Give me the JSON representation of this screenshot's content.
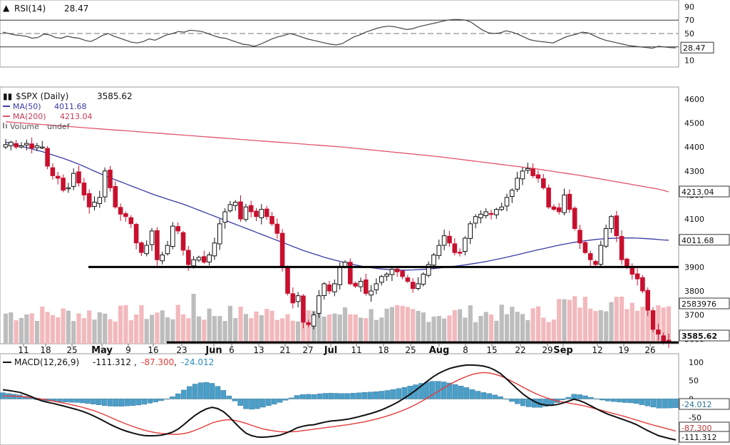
{
  "chart_data": [
    {
      "type": "line",
      "name": "rsi-panel",
      "legend": {
        "label": "RSI(14)",
        "value": "28.47"
      },
      "y_ticks": [
        "90",
        "70",
        "50",
        "30",
        "10"
      ],
      "ylim": [
        0,
        100
      ],
      "reference_lines": [
        70,
        50,
        30
      ],
      "last_value_label": "28.47",
      "series": [
        {
          "name": "RSI(14)",
          "color": "#444444",
          "values": [
            52,
            50,
            48,
            47,
            46,
            43,
            44,
            49,
            48,
            44,
            43,
            46,
            44,
            43,
            40,
            38,
            42,
            47,
            50,
            46,
            43,
            40,
            37,
            36,
            38,
            42,
            40,
            44,
            48,
            50,
            53,
            52,
            55,
            54,
            53,
            50,
            47,
            44,
            43,
            40,
            37,
            34,
            33,
            31,
            34,
            38,
            42,
            45,
            47,
            50,
            48,
            45,
            42,
            40,
            38,
            36,
            34,
            33,
            35,
            40,
            45,
            48,
            52,
            55,
            58,
            60,
            61,
            60,
            58,
            56,
            57,
            60,
            62,
            64,
            66,
            68,
            70,
            71,
            71,
            70,
            67,
            61,
            55,
            51,
            50,
            51,
            54,
            52,
            49,
            45,
            41,
            39,
            38,
            37,
            36,
            40,
            44,
            47,
            49,
            52,
            51,
            47,
            43,
            40,
            38,
            36,
            34,
            32,
            31,
            30,
            29,
            28,
            31,
            30,
            29,
            28.47
          ]
        }
      ]
    },
    {
      "type": "candlestick",
      "name": "price-panel",
      "legend": [
        {
          "label": "$SPX (Daily)",
          "value": "3585.62",
          "color": "#111111"
        },
        {
          "label": "MA(50)",
          "value": "4011.68",
          "color": "#3a3aa6"
        },
        {
          "label": "MA(200)",
          "value": "4213.04",
          "color": "#e0556e"
        },
        {
          "label": "Volume",
          "value": "undef",
          "color": "#777777"
        }
      ],
      "y_ticks": [
        "4600",
        "4500",
        "4400",
        "4300",
        "4200",
        "4100",
        "4000",
        "3900",
        "3800",
        "3700",
        "3600"
      ],
      "ylim": [
        3580,
        4650
      ],
      "value_labels": {
        "ma200": "4213.04",
        "ma50": "4011.68",
        "volume": "2583976",
        "close": "3585.62"
      },
      "support_lines": [
        3900,
        3585.62
      ],
      "closes": [
        4410,
        4420,
        4400,
        4405,
        4415,
        4395,
        4405,
        4400,
        4320,
        4280,
        4270,
        4220,
        4230,
        4290,
        4250,
        4200,
        4150,
        4170,
        4190,
        4300,
        4230,
        4150,
        4120,
        4110,
        4080,
        4000,
        3960,
        3990,
        4050,
        3930,
        3950,
        3990,
        4070,
        4050,
        3970,
        3910,
        3930,
        3940,
        3920,
        3950,
        4000,
        4080,
        4130,
        4160,
        4170,
        4100,
        4150,
        4130,
        4110,
        4140,
        4110,
        4080,
        4040,
        3900,
        3790,
        3750,
        3780,
        3670,
        3660,
        3700,
        3780,
        3830,
        3800,
        3830,
        3900,
        3920,
        3830,
        3820,
        3840,
        3790,
        3800,
        3830,
        3860,
        3870,
        3890,
        3880,
        3860,
        3840,
        3810,
        3830,
        3870,
        3910,
        3950,
        3990,
        4030,
        4000,
        3960,
        3960,
        4020,
        4080,
        4110,
        4120,
        4130,
        4120,
        4140,
        4150,
        4190,
        4220,
        4270,
        4300,
        4310,
        4280,
        4270,
        4230,
        4150,
        4140,
        4130,
        4200,
        4140,
        4060,
        4000,
        3960,
        3930,
        3910,
        3990,
        4060,
        4110,
        4030,
        3930,
        3900,
        3870,
        3850,
        3800,
        3720,
        3640,
        3620,
        3590,
        3585.62
      ],
      "ma50": [
        4420,
        4412,
        4404,
        4396,
        4388,
        4380,
        4370,
        4360,
        4350,
        4338,
        4326,
        4312,
        4298,
        4285,
        4272,
        4260,
        4248,
        4236,
        4224,
        4212,
        4200,
        4190,
        4180,
        4170,
        4160,
        4148,
        4136,
        4124,
        4112,
        4100,
        4088,
        4076,
        4064,
        4052,
        4040,
        4028,
        4016,
        4004,
        3992,
        3980,
        3968,
        3958,
        3948,
        3938,
        3930,
        3922,
        3915,
        3908,
        3902,
        3897,
        3893,
        3890,
        3888,
        3887,
        3887,
        3888,
        3890,
        3892,
        3895,
        3898,
        3902,
        3906,
        3910,
        3915,
        3920,
        3926,
        3932,
        3939,
        3946,
        3953,
        3961,
        3968,
        3975,
        3982,
        3989,
        3995,
        4001,
        4006,
        4010,
        4014,
        4017,
        4019,
        4020,
        4021,
        4021,
        4020,
        4018,
        4016,
        4013,
        4011.68
      ],
      "ma200": [
        4505,
        4502,
        4499,
        4496,
        4493,
        4490,
        4487,
        4484,
        4481,
        4478,
        4475,
        4472,
        4469,
        4466,
        4463,
        4460,
        4457,
        4454,
        4451,
        4448,
        4445,
        4442,
        4439,
        4436,
        4433,
        4430,
        4427,
        4424,
        4421,
        4418,
        4415,
        4412,
        4409,
        4406,
        4403,
        4400,
        4396,
        4392,
        4388,
        4384,
        4380,
        4376,
        4372,
        4368,
        4364,
        4360,
        4355,
        4350,
        4345,
        4340,
        4335,
        4330,
        4325,
        4320,
        4315,
        4310,
        4304,
        4298,
        4292,
        4286,
        4280,
        4273,
        4266,
        4259,
        4252,
        4245,
        4238,
        4231,
        4224,
        4213.04
      ]
    },
    {
      "type": "line",
      "name": "macd-panel",
      "legend": {
        "label": "MACD(12,26,9)",
        "macd": "-111.312",
        "signal": "-87.300",
        "histogram": "-24.012"
      },
      "y_ticks": [
        "100",
        "50",
        "0",
        "-50",
        "-100"
      ],
      "ylim": [
        -125,
        115
      ],
      "value_labels": {
        "histogram": "-24.012",
        "signal": "-87.300",
        "macd": "-111.312"
      },
      "series": [
        {
          "name": "MACD",
          "color": "#111111",
          "values": [
            25,
            22,
            18,
            10,
            0,
            -8,
            -12,
            -18,
            -24,
            -30,
            -38,
            -48,
            -60,
            -72,
            -82,
            -90,
            -96,
            -100,
            -100,
            -98,
            -92,
            -80,
            -60,
            -42,
            -28,
            -22,
            -30,
            -50,
            -75,
            -95,
            -103,
            -104,
            -102,
            -98,
            -90,
            -78,
            -72,
            -70,
            -64,
            -60,
            -58,
            -55,
            -50,
            -44,
            -38,
            -30,
            -20,
            -8,
            6,
            22,
            40,
            58,
            72,
            82,
            88,
            92,
            92,
            90,
            84,
            72,
            52,
            30,
            10,
            -5,
            -15,
            -18,
            -15,
            -8,
            0,
            -8,
            -20,
            -32,
            -42,
            -50,
            -58,
            -66,
            -78,
            -90,
            -100,
            -106,
            -111.312
          ]
        },
        {
          "name": "Signal",
          "color": "#e33b3b",
          "values": [
            8,
            8,
            7,
            5,
            2,
            -2,
            -6,
            -10,
            -15,
            -20,
            -26,
            -33,
            -42,
            -52,
            -62,
            -71,
            -79,
            -86,
            -91,
            -94,
            -96,
            -96,
            -92,
            -84,
            -74,
            -64,
            -58,
            -56,
            -60,
            -67,
            -75,
            -82,
            -86,
            -89,
            -90,
            -88,
            -85,
            -82,
            -79,
            -76,
            -73,
            -70,
            -66,
            -62,
            -57,
            -51,
            -44,
            -36,
            -27,
            -16,
            -4,
            10,
            24,
            38,
            50,
            60,
            68,
            72,
            70,
            64,
            54,
            42,
            30,
            18,
            8,
            0,
            -6,
            -10,
            -14,
            -18,
            -24,
            -30,
            -36,
            -42,
            -48,
            -55,
            -62,
            -69,
            -75,
            -81,
            -87.3
          ]
        }
      ]
    }
  ],
  "x_axis": {
    "labels": [
      "11",
      "18",
      "25",
      "May",
      "9",
      "16",
      "23",
      "Jun",
      "6",
      "13",
      "21",
      "27",
      "Jul",
      "11",
      "18",
      "25",
      "Aug",
      "8",
      "15",
      "22",
      "29",
      "Sep",
      "12",
      "19",
      "26"
    ],
    "month_labels": [
      "May",
      "Jun",
      "Jul",
      "Aug",
      "Sep"
    ]
  }
}
